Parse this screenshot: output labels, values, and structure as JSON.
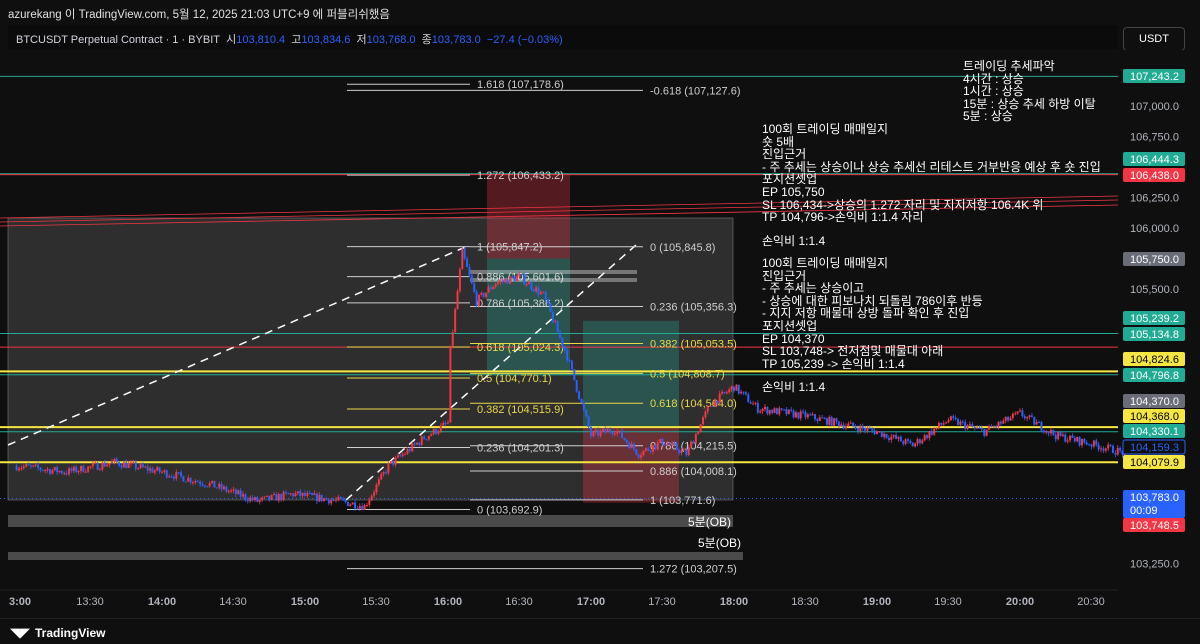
{
  "header": {
    "published": "azurekang 이 TradingView.com, 5월 12, 2025 21:03 UTC+9 에 퍼블리쉬했음",
    "symbol": "BTCUSDT Perpetual Contract · 1 · BYBIT",
    "o_label": "시",
    "o": "103,810.4",
    "h_label": "고",
    "h": "103,834.6",
    "l_label": "저",
    "l": "103,768.0",
    "c_label": "종",
    "c": "103,783.0",
    "change": "−27.4 (−0.03%)",
    "currency_button": "USDT"
  },
  "footer": {
    "logo": "TradingView"
  },
  "colors": {
    "up": "#f23645",
    "down": "#2962ff",
    "teal": "#22ab94",
    "yellow": "#f5e642",
    "red": "#f23645",
    "bg": "#0f0f0f"
  },
  "annotations": {
    "trend": [
      "트레이딩 추세파악",
      "4시간 : 상승",
      "1시간 : 상승",
      "15분 : 상승 추세 하방 이탈",
      "5분 : 상승"
    ],
    "short": [
      "100회 트레이딩 매매일지",
      "숏 5배",
      "진입근거",
      "- 주 추세는 상승이나 상승 추세선 리테스트 거부반응 예상 후 숏 진입",
      "포지션셋업",
      "EP 105,750",
      "SL 106,434->상승의 1.272 자리 및 지지저항 106.4K 위",
      "TP 104,796->손익비 1:1.4 자리"
    ],
    "short_rr": "손익비 1:1.4",
    "long": [
      "100회 트레이딩 매매일지",
      "진입근거",
      "- 주 추세는 상승이고",
      "- 상승에 대한 피보나치 되돌림 786이후 반등",
      "- 지지 저항 매물대 상방 돌파 확인 후 진입",
      "포지션셋업",
      "EP 104,370",
      "SL 103,748-> 전저점및 매물대 아래",
      "TP 105,239 -> 손익비 1:1.4"
    ],
    "long_rr": "손익비 1:1.4",
    "ob_labels": [
      "5분(OB)",
      "5분(OB)"
    ]
  },
  "chart_data": {
    "type": "candlestick",
    "interval": "1m",
    "y_ticks": [
      107000,
      106750,
      106250,
      106000,
      105500,
      103250
    ],
    "y_tick_labels": [
      "107,000.0",
      "106,750.0",
      "106,250.0",
      "106,000.0",
      "105,500.0",
      "103,250.0"
    ],
    "ylim": [
      103100,
      107450
    ],
    "x_ticks": [
      "3:00",
      "13:30",
      "14:00",
      "14:30",
      "15:00",
      "15:30",
      "16:00",
      "16:30",
      "17:00",
      "17:30",
      "18:00",
      "18:30",
      "19:00",
      "19:30",
      "20:00",
      "20:30"
    ],
    "close_path": [
      [
        "12:59",
        104050
      ],
      [
        "13:20",
        104000
      ],
      [
        "13:40",
        104080
      ],
      [
        "14:00",
        104000
      ],
      [
        "14:20",
        103900
      ],
      [
        "14:40",
        103760
      ],
      [
        "14:55",
        103820
      ],
      [
        "15:15",
        103760
      ],
      [
        "15:25",
        103720
      ],
      [
        "15:35",
        104050
      ],
      [
        "15:50",
        104280
      ],
      [
        "16:00",
        104400
      ],
      [
        "16:01",
        105000
      ],
      [
        "16:06",
        105800
      ],
      [
        "16:12",
        105400
      ],
      [
        "16:20",
        105550
      ],
      [
        "16:30",
        105600
      ],
      [
        "16:40",
        105450
      ],
      [
        "16:50",
        104950
      ],
      [
        "17:00",
        104300
      ],
      [
        "17:10",
        104350
      ],
      [
        "17:20",
        104150
      ],
      [
        "17:30",
        104250
      ],
      [
        "17:40",
        104150
      ],
      [
        "17:50",
        104550
      ],
      [
        "18:00",
        104700
      ],
      [
        "18:10",
        104520
      ],
      [
        "18:30",
        104460
      ],
      [
        "19:00",
        104330
      ],
      [
        "19:15",
        104220
      ],
      [
        "19:30",
        104430
      ],
      [
        "19:45",
        104330
      ],
      [
        "20:00",
        104480
      ],
      [
        "20:15",
        104300
      ],
      [
        "20:30",
        104230
      ],
      [
        "20:45",
        104150
      ]
    ],
    "price_tags": [
      {
        "value": "107,243.2",
        "color": "#22ab94",
        "text": "#fff"
      },
      {
        "value": "106,444.3",
        "color": "#22ab94",
        "text": "#fff"
      },
      {
        "value": "106,438.0",
        "color": "#f23645",
        "text": "#fff"
      },
      {
        "value": "105,750.0",
        "color": "#6a6d78",
        "text": "#fff"
      },
      {
        "value": "105,239.2",
        "color": "#22ab94",
        "text": "#fff"
      },
      {
        "value": "105,134.8",
        "color": "#22ab94",
        "text": "#fff"
      },
      {
        "value": "104,824.6",
        "color": "#f5e642",
        "text": "#000"
      },
      {
        "value": "104,796.8",
        "color": "#22ab94",
        "text": "#fff"
      },
      {
        "value": "104,370.0",
        "color": "#6a6d78",
        "text": "#fff"
      },
      {
        "value": "104,368.0",
        "color": "#f5e642",
        "text": "#000"
      },
      {
        "value": "104,330.1",
        "color": "#22ab94",
        "text": "#fff"
      },
      {
        "value": "104,159.3",
        "color": "#0f0f0f",
        "text": "#2962ff"
      },
      {
        "value": "104,079.9",
        "color": "#f5e642",
        "text": "#000"
      },
      {
        "value": "103,783.0",
        "color": "#2962ff",
        "text": "#fff",
        "sub": "00:09"
      },
      {
        "value": "103,748.5",
        "color": "#f23645",
        "text": "#fff"
      }
    ],
    "hlines": [
      {
        "price": 107243.2,
        "color": "#22ab94"
      },
      {
        "price": 106444.3,
        "color": "#22ab94"
      },
      {
        "price": 106438,
        "color": "#f23645"
      },
      {
        "price": 105134.8,
        "color": "#22ab94"
      },
      {
        "price": 105024,
        "color": "#f23645"
      },
      {
        "price": 104824.6,
        "color": "#f5e642"
      },
      {
        "price": 104796.8,
        "color": "#22ab94"
      },
      {
        "price": 104368,
        "color": "#f5e642"
      },
      {
        "price": 104330.1,
        "color": "#22ab94"
      },
      {
        "price": 104079.9,
        "color": "#f5e642"
      }
    ],
    "fib_a": [
      [
        "1.618 (107,178.6)",
        107178.6
      ],
      [
        "1.272 (106,433.2)",
        106433.2
      ],
      [
        "1 (105,847.2)",
        105847.2
      ],
      [
        "0.886 (105,601.6)",
        105601.6
      ],
      [
        "0.786 (105,386.2)",
        105386.2
      ],
      [
        "0.618 (105,024.3)",
        105024.3
      ],
      [
        "0.5 (104,770.1)",
        104770.1
      ],
      [
        "0.382 (104,515.9)",
        104515.9
      ],
      [
        "0.236 (104,201.3)",
        104201.3
      ],
      [
        "0 (103,692.9)",
        103692.9
      ]
    ],
    "fib_b": [
      [
        "-0.618 (107,127.6)",
        107127.6
      ],
      [
        "0 (105,845.8)",
        105845.8
      ],
      [
        "0.236 (105,356.3)",
        105356.3
      ],
      [
        "0.382 (105,053.5)",
        105053.5
      ],
      [
        "0.5 (104,808.7)",
        104808.7
      ],
      [
        "0.618 (104,564.0)",
        104564.0
      ],
      [
        "0.786 (104,215.5)",
        104215.5
      ],
      [
        "0.886 (104,008.1)",
        104008.1
      ],
      [
        "1 (103,771.6)",
        103771.6
      ],
      [
        "1.272 (103,207.5)",
        103207.5
      ]
    ],
    "short_position": {
      "entry": 105750,
      "stop": 106434,
      "target": 104796
    },
    "long_position": {
      "entry": 104370,
      "stop": 103748,
      "target": 105239
    },
    "current_price": 103783
  }
}
